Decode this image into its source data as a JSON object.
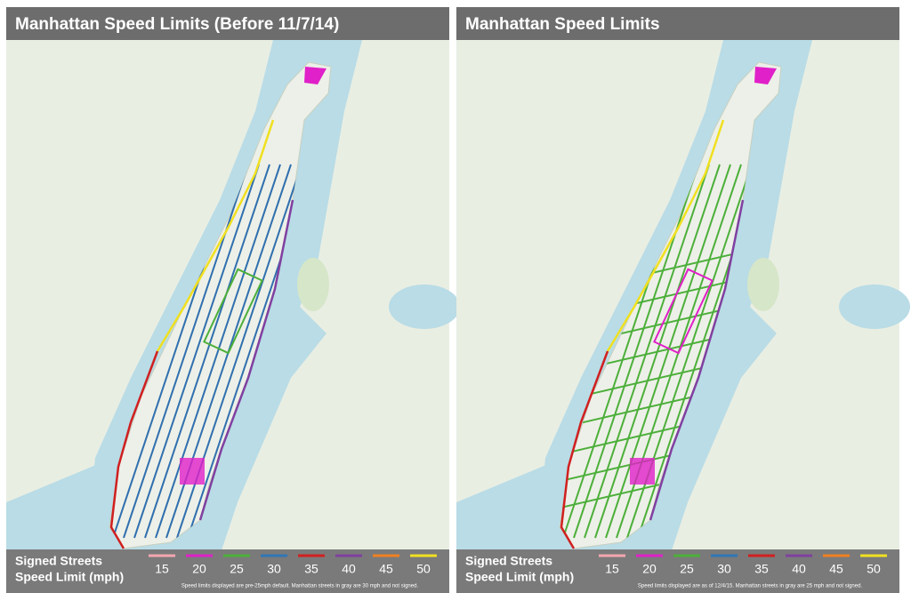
{
  "panels": [
    {
      "title": "Manhattan Speed Limits (Before 11/7/14)",
      "legend_title": [
        "Signed Streets",
        "Speed Limit (mph)"
      ],
      "footnote": "Speed limits displayed are pre-25mph default. Manhattan streets in gray are 30 mph and not signed.",
      "street_color": "#2f6fae"
    },
    {
      "title": "Manhattan Speed Limits",
      "legend_title": [
        "Signed Streets",
        "Speed Limit (mph)"
      ],
      "footnote": "Speed limits displayed are as of 12/4/15. Manhattan streets in gray are 25 mph and not signed.",
      "street_color": "#4caf3a"
    }
  ],
  "legend": [
    {
      "label": "15",
      "color": "#f4a6b0"
    },
    {
      "label": "20",
      "color": "#e020c8"
    },
    {
      "label": "25",
      "color": "#4caf3a"
    },
    {
      "label": "30",
      "color": "#2f77b5"
    },
    {
      "label": "35",
      "color": "#d02020"
    },
    {
      "label": "40",
      "color": "#8040a0"
    },
    {
      "label": "45",
      "color": "#f08020"
    },
    {
      "label": "50",
      "color": "#f0e020"
    }
  ]
}
